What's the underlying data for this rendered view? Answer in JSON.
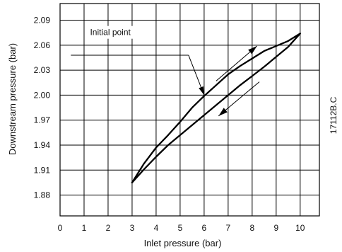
{
  "chart_data": {
    "type": "line",
    "xlabel": "Inlet pressure  (bar)",
    "ylabel": "Downstream pressure (bar)",
    "xlim": [
      0,
      10.8
    ],
    "ylim": [
      1.855,
      2.11
    ],
    "x_ticks": [
      "0",
      "1",
      "2",
      "3",
      "4",
      "5",
      "6",
      "7",
      "8",
      "9",
      "10"
    ],
    "y_ticks": [
      "1.88",
      "1.91",
      "1.94",
      "1.97",
      "2.00",
      "2.03",
      "2.06",
      "2.09"
    ],
    "grid": true,
    "annotation": "Initial point",
    "annotation_x": 6.0,
    "annotation_y": 2.0,
    "side_code": "17112B.C",
    "series": [
      {
        "direction": "rising",
        "x": [
          3.0,
          3.5,
          4.0,
          4.5,
          5.0,
          5.5,
          6.0,
          6.5,
          7.0,
          7.5,
          8.0,
          8.5,
          9.0,
          9.5,
          10.0
        ],
        "y": [
          1.895,
          1.918,
          1.937,
          1.952,
          1.968,
          1.985,
          1.999,
          2.012,
          2.025,
          2.035,
          2.044,
          2.053,
          2.059,
          2.065,
          2.074
        ]
      },
      {
        "direction": "falling",
        "x": [
          10.0,
          9.5,
          9.0,
          8.5,
          8.0,
          7.5,
          7.0,
          6.5,
          6.0,
          5.5,
          5.0,
          4.5,
          4.0,
          3.5,
          3.0
        ],
        "y": [
          2.074,
          2.058,
          2.046,
          2.034,
          2.023,
          2.012,
          2.0,
          1.988,
          1.976,
          1.964,
          1.952,
          1.94,
          1.926,
          1.911,
          1.895
        ]
      }
    ]
  }
}
